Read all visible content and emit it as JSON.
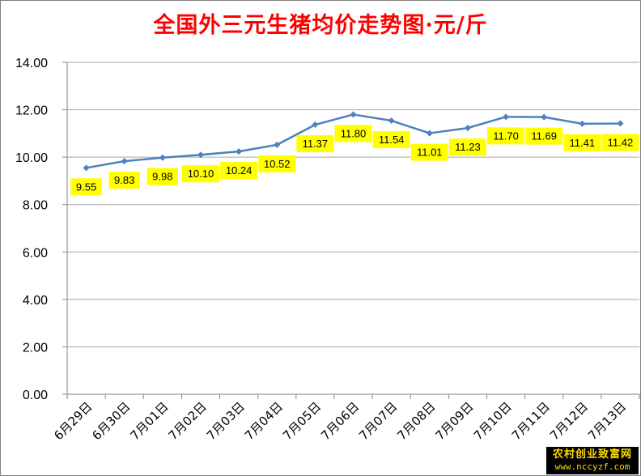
{
  "chart_data": {
    "type": "line",
    "title": "全国外三元生猪均价走势图·元/斤",
    "categories": [
      "6月29日",
      "6月30日",
      "7月01日",
      "7月02日",
      "7月03日",
      "7月04日",
      "7月05日",
      "7月06日",
      "7月07日",
      "7月08日",
      "7月09日",
      "7月10日",
      "7月11日",
      "7月12日",
      "7月13日"
    ],
    "values": [
      9.55,
      9.83,
      9.98,
      10.1,
      10.24,
      10.52,
      11.37,
      11.8,
      11.54,
      11.01,
      11.23,
      11.7,
      11.69,
      11.41,
      11.42
    ],
    "data_labels": [
      "9.55",
      "9.83",
      "9.98",
      "10.10",
      "10.24",
      "10.52",
      "11.37",
      "11.80",
      "11.54",
      "11.01",
      "11.23",
      "11.70",
      "11.69",
      "11.41",
      "11.42"
    ],
    "y_ticks": [
      "0.00",
      "2.00",
      "4.00",
      "6.00",
      "8.00",
      "10.00",
      "12.00",
      "14.00"
    ],
    "ylim": [
      0,
      14
    ],
    "grid": true,
    "legend": "none",
    "colors": {
      "line": "#4f81bd",
      "label_bg": "#ffff00",
      "title": "#ff0000",
      "grid": "#a6a6a6"
    }
  },
  "watermark": {
    "line1": "农村创业致富网",
    "line2": "www.nccyzf.com"
  }
}
